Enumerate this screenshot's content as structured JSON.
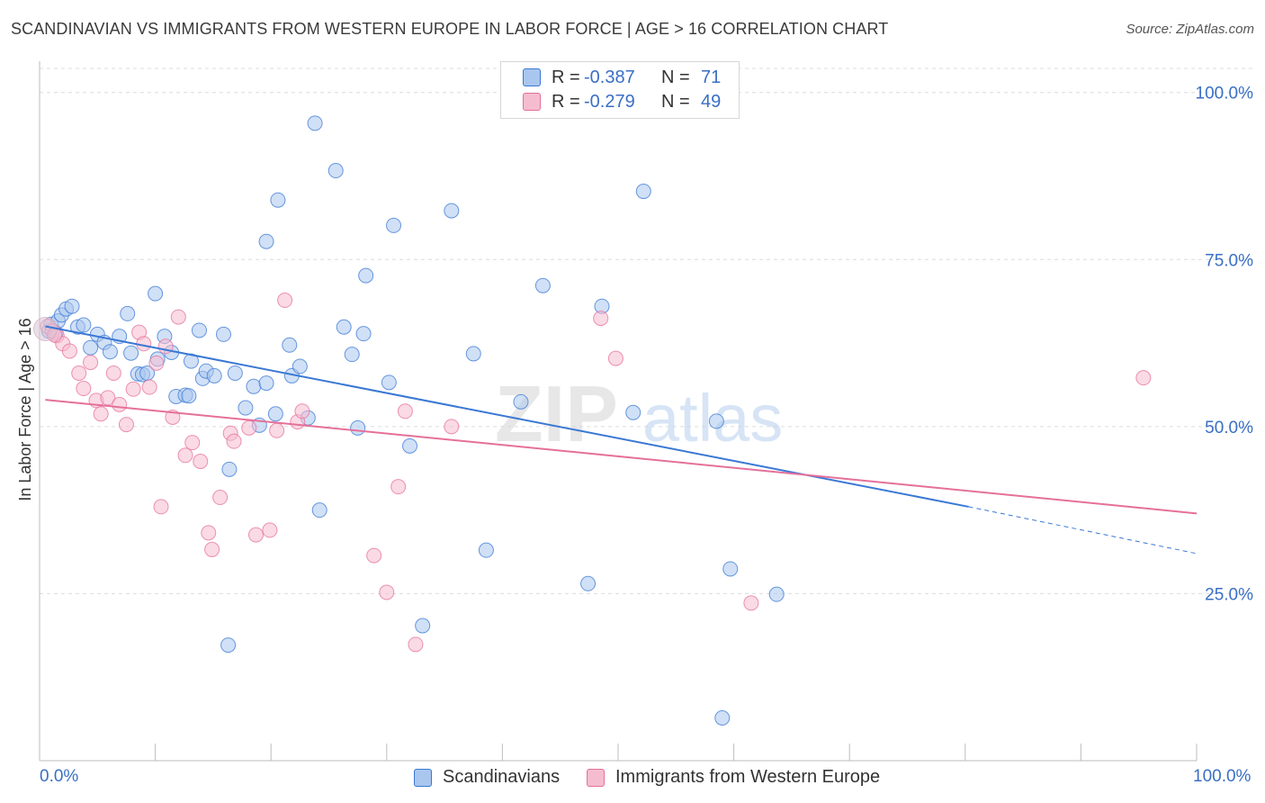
{
  "title": "SCANDINAVIAN VS IMMIGRANTS FROM WESTERN EUROPE IN LABOR FORCE | AGE > 16 CORRELATION CHART",
  "source": "Source: ZipAtlas.com",
  "watermark": {
    "zip": "ZIP",
    "atlas": "atlas"
  },
  "legend": {
    "r_label": "R =",
    "n_label": "N =",
    "rows": [
      {
        "r": "-0.387",
        "n": "71"
      },
      {
        "r": "-0.279",
        "n": "49"
      }
    ]
  },
  "bottom_legend": [
    "Scandinavians",
    "Immigrants from Western Europe"
  ],
  "colors": {
    "blue": "#3a78d4",
    "blue_fill": "#a9c6ef",
    "pink": "#e5709a",
    "pink_fill": "#f5bccf",
    "axis_text": "#3a6fc4",
    "grid": "#dcdcdc"
  },
  "chart_data": {
    "type": "scatter",
    "title": "SCANDINAVIAN VS IMMIGRANTS FROM WESTERN EUROPE IN LABOR FORCE | AGE > 16 CORRELATION CHART",
    "xlabel": "",
    "ylabel": "In Labor Force | Age > 16",
    "xlim": [
      0,
      100
    ],
    "ylim": [
      0,
      104
    ],
    "x_tick_labels": [
      "0.0%",
      "100.0%"
    ],
    "y_ticks": [
      25,
      50,
      75,
      100
    ],
    "y_tick_labels": [
      "25.0%",
      "50.0%",
      "75.0%",
      "100.0%"
    ],
    "grid": true,
    "legend_placement": "top-center",
    "series": [
      {
        "name": "Scandinavians",
        "color": "#3a78d4",
        "r": -0.387,
        "n": 71,
        "trend": {
          "x_start": 0.5,
          "y_start": 65.0,
          "x_solid_end": 80.3,
          "y_solid_end": 38.0,
          "x_end": 100,
          "y_end": 31.0
        },
        "points": [
          [
            0.8,
            64.3
          ],
          [
            1.0,
            65.3
          ],
          [
            1.4,
            64.0
          ],
          [
            1.6,
            65.8
          ],
          [
            1.9,
            66.7
          ],
          [
            2.3,
            67.6
          ],
          [
            2.8,
            68.0
          ],
          [
            3.3,
            64.9
          ],
          [
            3.8,
            65.2
          ],
          [
            4.4,
            61.8
          ],
          [
            5.0,
            63.8
          ],
          [
            5.6,
            62.6
          ],
          [
            6.1,
            61.2
          ],
          [
            6.9,
            63.5
          ],
          [
            7.6,
            66.9
          ],
          [
            7.9,
            61.0
          ],
          [
            8.5,
            57.9
          ],
          [
            8.9,
            57.8
          ],
          [
            9.3,
            58.0
          ],
          [
            10.0,
            69.9
          ],
          [
            10.2,
            60.1
          ],
          [
            10.8,
            63.5
          ],
          [
            11.4,
            61.1
          ],
          [
            11.8,
            54.5
          ],
          [
            12.6,
            54.7
          ],
          [
            12.9,
            54.6
          ],
          [
            13.1,
            59.8
          ],
          [
            13.8,
            64.4
          ],
          [
            14.1,
            57.2
          ],
          [
            14.4,
            58.3
          ],
          [
            15.1,
            57.6
          ],
          [
            15.9,
            63.8
          ],
          [
            16.4,
            43.6
          ],
          [
            16.9,
            58.0
          ],
          [
            17.8,
            52.8
          ],
          [
            18.5,
            56.0
          ],
          [
            19.0,
            50.2
          ],
          [
            19.6,
            56.5
          ],
          [
            20.4,
            51.9
          ],
          [
            20.6,
            83.9
          ],
          [
            21.6,
            62.2
          ],
          [
            21.8,
            57.6
          ],
          [
            22.5,
            59.0
          ],
          [
            23.2,
            51.3
          ],
          [
            23.8,
            95.4
          ],
          [
            24.2,
            37.5
          ],
          [
            25.6,
            88.3
          ],
          [
            26.3,
            64.9
          ],
          [
            27.0,
            60.8
          ],
          [
            27.5,
            49.8
          ],
          [
            28.0,
            63.9
          ],
          [
            28.2,
            72.6
          ],
          [
            30.2,
            56.6
          ],
          [
            30.6,
            80.1
          ],
          [
            32.0,
            47.1
          ],
          [
            33.1,
            20.2
          ],
          [
            35.6,
            82.3
          ],
          [
            37.5,
            60.9
          ],
          [
            38.6,
            31.5
          ],
          [
            41.6,
            53.7
          ],
          [
            43.5,
            71.1
          ],
          [
            47.4,
            26.5
          ],
          [
            48.6,
            68.0
          ],
          [
            51.3,
            52.1
          ],
          [
            52.2,
            85.2
          ],
          [
            58.5,
            50.8
          ],
          [
            59.0,
            6.4
          ],
          [
            59.7,
            28.7
          ],
          [
            63.7,
            24.9
          ],
          [
            16.3,
            17.3
          ],
          [
            19.6,
            77.7
          ]
        ]
      },
      {
        "name": "Immigrants from Western Europe",
        "color": "#e5709a",
        "r": -0.279,
        "n": 49,
        "trend": {
          "x_start": 0.5,
          "y_start": 54.0,
          "x_end": 100,
          "y_end": 37.0
        },
        "points": [
          [
            0.7,
            65.0
          ],
          [
            1.1,
            64.3
          ],
          [
            1.5,
            63.6
          ],
          [
            2.0,
            62.4
          ],
          [
            2.6,
            61.3
          ],
          [
            3.4,
            58.0
          ],
          [
            3.8,
            55.7
          ],
          [
            4.4,
            59.6
          ],
          [
            4.9,
            53.9
          ],
          [
            5.3,
            51.9
          ],
          [
            5.9,
            54.3
          ],
          [
            6.4,
            58.0
          ],
          [
            6.9,
            53.3
          ],
          [
            7.5,
            50.3
          ],
          [
            8.1,
            55.6
          ],
          [
            8.6,
            64.1
          ],
          [
            9.0,
            62.4
          ],
          [
            9.5,
            55.9
          ],
          [
            10.1,
            59.5
          ],
          [
            10.5,
            38.0
          ],
          [
            10.9,
            62.0
          ],
          [
            11.5,
            51.4
          ],
          [
            12.0,
            66.4
          ],
          [
            12.6,
            45.7
          ],
          [
            13.2,
            47.6
          ],
          [
            13.9,
            44.8
          ],
          [
            14.6,
            34.1
          ],
          [
            14.9,
            31.6
          ],
          [
            15.6,
            39.4
          ],
          [
            16.5,
            49.0
          ],
          [
            16.8,
            47.8
          ],
          [
            18.1,
            49.8
          ],
          [
            18.7,
            33.8
          ],
          [
            19.9,
            34.5
          ],
          [
            20.5,
            49.4
          ],
          [
            21.2,
            68.9
          ],
          [
            22.3,
            50.7
          ],
          [
            22.7,
            52.3
          ],
          [
            28.9,
            30.7
          ],
          [
            30.0,
            25.2
          ],
          [
            31.0,
            41.0
          ],
          [
            31.6,
            52.3
          ],
          [
            32.5,
            17.4
          ],
          [
            35.6,
            50.0
          ],
          [
            48.5,
            66.2
          ],
          [
            49.8,
            60.2
          ],
          [
            61.5,
            23.6
          ],
          [
            95.4,
            57.3
          ],
          [
            1.3,
            63.7
          ]
        ]
      }
    ]
  }
}
